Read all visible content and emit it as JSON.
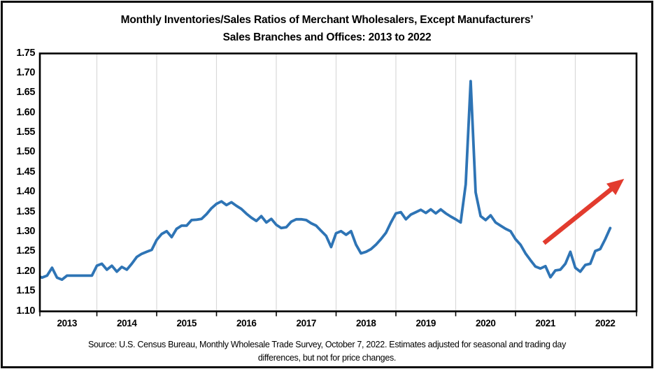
{
  "figure": {
    "title_line1": "Monthly Inventories/Sales Ratios of Merchant Wholesalers, Except Manufacturers’",
    "title_line2": "Sales Branches and Offices: 2013 to 2022",
    "source_line1": "Source: U.S. Census Bureau, Monthly Wholesale Trade Survey, October 7, 2022. Estimates adjusted for seasonal and trading day",
    "source_line2": "differences, but not for price changes."
  },
  "colors": {
    "line_blue": "#2e74b5",
    "arrow_red": "#e23b2e",
    "gridline": "#d9d9d9",
    "axis_black": "#000000",
    "background": "#ffffff",
    "text": "#000000"
  },
  "chart_data": {
    "type": "line",
    "title": "Monthly Inventories/Sales Ratios of Merchant Wholesalers, Except Manufacturers’ Sales Branches and Offices: 2013 to 2022",
    "xlabel": "",
    "ylabel": "",
    "legend": "none",
    "grid": "vertical-year-gridlines-only",
    "ylim": [
      1.1,
      1.75
    ],
    "y_ticks": [
      "1.75",
      "1.70",
      "1.65",
      "1.60",
      "1.55",
      "1.50",
      "1.45",
      "1.40",
      "1.35",
      "1.30",
      "1.25",
      "1.20",
      "1.15",
      "1.10"
    ],
    "x_years": [
      "2013",
      "2014",
      "2015",
      "2016",
      "2017",
      "2018",
      "2019",
      "2020",
      "2021",
      "2022"
    ],
    "x_start": "2013-01",
    "x_end": "2022-08",
    "series": [
      {
        "name": "Inventories/Sales ratio",
        "color": "#2e74b5",
        "values_by_year": {
          "2013": [
            1.19,
            1.185,
            1.19,
            1.21,
            1.185,
            1.18,
            1.19,
            1.19,
            1.19,
            1.19,
            1.19,
            1.19
          ],
          "2014": [
            1.215,
            1.22,
            1.205,
            1.215,
            1.2,
            1.212,
            1.205,
            1.22,
            1.237,
            1.245,
            1.25,
            1.255
          ],
          "2015": [
            1.28,
            1.295,
            1.302,
            1.287,
            1.308,
            1.316,
            1.316,
            1.33,
            1.331,
            1.333,
            1.345,
            1.36
          ],
          "2016": [
            1.371,
            1.377,
            1.368,
            1.375,
            1.366,
            1.358,
            1.346,
            1.336,
            1.328,
            1.34,
            1.324,
            1.333
          ],
          "2017": [
            1.318,
            1.31,
            1.312,
            1.326,
            1.332,
            1.332,
            1.33,
            1.322,
            1.316,
            1.303,
            1.29,
            1.262
          ],
          "2018": [
            1.297,
            1.302,
            1.293,
            1.302,
            1.268,
            1.246,
            1.25,
            1.257,
            1.268,
            1.282,
            1.298,
            1.324
          ],
          "2019": [
            1.347,
            1.35,
            1.332,
            1.344,
            1.35,
            1.356,
            1.348,
            1.357,
            1.347,
            1.357,
            1.347,
            1.339
          ],
          "2020": [
            1.332,
            1.324,
            1.42,
            1.68,
            1.4,
            1.34,
            1.33,
            1.342,
            1.324,
            1.316,
            1.308,
            1.302
          ],
          "2021": [
            1.282,
            1.268,
            1.246,
            1.229,
            1.213,
            1.208,
            1.214,
            1.186,
            1.203,
            1.205,
            1.22,
            1.25
          ],
          "2022": [
            1.21,
            1.2,
            1.217,
            1.22,
            1.252,
            1.257,
            1.282,
            1.31
          ]
        }
      }
    ],
    "annotations": [
      {
        "type": "arrow",
        "label": "upward trend through 2021-2022",
        "color": "#e23b2e",
        "start_month_index": 101.7,
        "start_value": 1.272,
        "end_month_index": 117.8,
        "end_value": 1.434
      }
    ],
    "notable_points": {
      "peak": {
        "month": "2020-04",
        "value": 1.68
      },
      "last": {
        "month": "2022-08",
        "value": 1.31
      }
    }
  }
}
